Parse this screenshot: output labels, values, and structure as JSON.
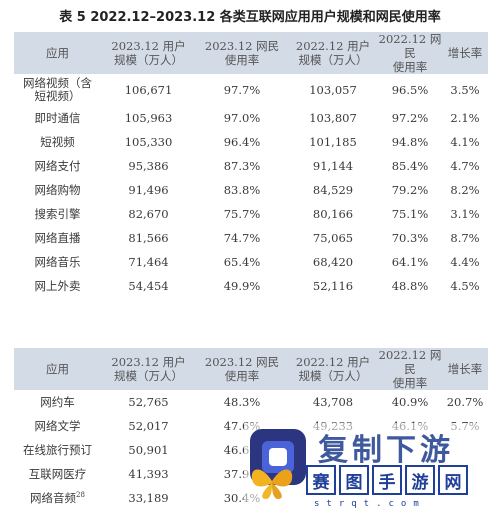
{
  "title": "表 5  2022.12–2023.12 各类互联网应用用户规模和网民使用率",
  "headers": {
    "app": "应用",
    "users_2023": [
      "2023.12 用户",
      "规模（万人）"
    ],
    "rate_2023": [
      "2023.12 网民",
      "使用率"
    ],
    "users_2022": [
      "2022.12 用户",
      "规模（万人）"
    ],
    "rate_2022": [
      "2022.12 网民",
      "使用率"
    ],
    "growth": "增长率"
  },
  "table1_rows": [
    {
      "app": [
        "网络视频（含",
        "短视频）"
      ],
      "u23": "106,671",
      "r23": "97.7%",
      "u22": "103,057",
      "r22": "96.5%",
      "g": "3.5%"
    },
    {
      "app": [
        "即时通信"
      ],
      "u23": "105,963",
      "r23": "97.0%",
      "u22": "103,807",
      "r22": "97.2%",
      "g": "2.1%"
    },
    {
      "app": [
        "短视频"
      ],
      "u23": "105,330",
      "r23": "96.4%",
      "u22": "101,185",
      "r22": "94.8%",
      "g": "4.1%"
    },
    {
      "app": [
        "网络支付"
      ],
      "u23": "95,386",
      "r23": "87.3%",
      "u22": "91,144",
      "r22": "85.4%",
      "g": "4.7%"
    },
    {
      "app": [
        "网络购物"
      ],
      "u23": "91,496",
      "r23": "83.8%",
      "u22": "84,529",
      "r22": "79.2%",
      "g": "8.2%"
    },
    {
      "app": [
        "搜索引擎"
      ],
      "u23": "82,670",
      "r23": "75.7%",
      "u22": "80,166",
      "r22": "75.1%",
      "g": "3.1%"
    },
    {
      "app": [
        "网络直播"
      ],
      "u23": "81,566",
      "r23": "74.7%",
      "u22": "75,065",
      "r22": "70.3%",
      "g": "8.7%"
    },
    {
      "app": [
        "网络音乐"
      ],
      "u23": "71,464",
      "r23": "65.4%",
      "u22": "68,420",
      "r22": "64.1%",
      "g": "4.4%"
    },
    {
      "app": [
        "网上外卖"
      ],
      "u23": "54,454",
      "r23": "49.9%",
      "u22": "52,116",
      "r22": "48.8%",
      "g": "4.5%"
    }
  ],
  "table2_rows": [
    {
      "app": "网约车",
      "u23": "52,765",
      "r23": "48.3%",
      "u22": "43,708",
      "r22": "40.9%",
      "g": "20.7%"
    },
    {
      "app": "网络文学",
      "u23": "52,017",
      "r23": "47.6%",
      "u22": "49,233",
      "r22": "46.1%",
      "g": "5.7%"
    },
    {
      "app": "在线旅行预订",
      "u23": "50,901",
      "r23": "46.6%",
      "u22": "",
      "r22": "",
      "g": ""
    },
    {
      "app": "互联网医疗",
      "u23": "41,393",
      "r23": "37.9%",
      "u22": "",
      "r22": "",
      "g": ""
    },
    {
      "app": "网络音频",
      "sup": "28",
      "u23": "33,189",
      "r23": "30.4%",
      "u22": "",
      "r22": "",
      "g": ""
    }
  ],
  "watermark": {
    "top_text": "复制下游",
    "chars": [
      "赛",
      "图",
      "手",
      "游",
      "网"
    ],
    "sub": "strqt.com",
    "colors": {
      "primary": "#1f3f99",
      "logo": "#2c3580"
    }
  }
}
